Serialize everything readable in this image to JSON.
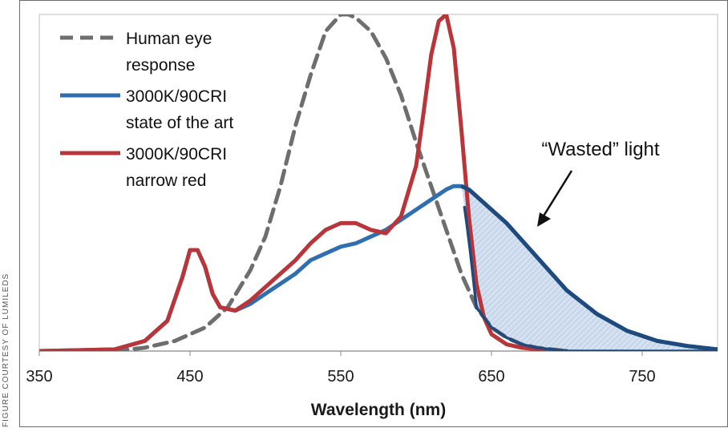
{
  "credit": "FIGURE COURTESY OF LUMILEDS",
  "chart_data": {
    "type": "line",
    "title": "",
    "xlabel": "Wavelength (nm)",
    "ylabel": "",
    "xlim": [
      350,
      800
    ],
    "ylim": [
      0,
      1.0
    ],
    "x_ticks": [
      350,
      450,
      550,
      650,
      750
    ],
    "grid": false,
    "legend_position": "top-left",
    "annotation": "“Wasted” light",
    "colors": {
      "human_eye": "#6e6e6e",
      "state_of_art": "#2f6fb0",
      "narrow_red": "#b8353a",
      "wasted_fill": "#c9d8ec",
      "wasted_edge": "#1f4a7d"
    },
    "series": [
      {
        "key": "human_eye",
        "name": "Human eye response",
        "legend_lines": [
          "Human eye",
          "response"
        ],
        "style": "dashed",
        "x": [
          400,
          420,
          440,
          460,
          475,
          490,
          500,
          510,
          520,
          530,
          540,
          550,
          555,
          560,
          570,
          580,
          590,
          600,
          610,
          620,
          630,
          640,
          650,
          660,
          670,
          680,
          700
        ],
        "y": [
          0.0,
          0.01,
          0.03,
          0.07,
          0.13,
          0.24,
          0.34,
          0.49,
          0.67,
          0.82,
          0.95,
          1.0,
          1.0,
          0.99,
          0.95,
          0.87,
          0.76,
          0.62,
          0.49,
          0.36,
          0.23,
          0.13,
          0.07,
          0.04,
          0.02,
          0.01,
          0.0
        ]
      },
      {
        "key": "state_of_art",
        "name": "3000K/90CRI state of the art",
        "legend_lines": [
          "3000K/90CRI",
          "state of the art"
        ],
        "style": "solid",
        "x": [
          350,
          400,
          420,
          435,
          445,
          450,
          455,
          460,
          465,
          470,
          480,
          490,
          500,
          510,
          520,
          530,
          540,
          550,
          560,
          570,
          580,
          590,
          600,
          610,
          620,
          625,
          630,
          635,
          640,
          650,
          660,
          670,
          680,
          690,
          700,
          720,
          740,
          760,
          780,
          800
        ],
        "y": [
          0.0,
          0.005,
          0.03,
          0.09,
          0.22,
          0.3,
          0.3,
          0.25,
          0.17,
          0.13,
          0.12,
          0.14,
          0.17,
          0.2,
          0.23,
          0.27,
          0.29,
          0.31,
          0.32,
          0.34,
          0.36,
          0.39,
          0.42,
          0.45,
          0.48,
          0.49,
          0.49,
          0.48,
          0.46,
          0.42,
          0.38,
          0.33,
          0.28,
          0.23,
          0.18,
          0.11,
          0.06,
          0.03,
          0.015,
          0.005
        ]
      },
      {
        "key": "narrow_red",
        "name": "3000K/90CRI narrow red",
        "legend_lines": [
          "3000K/90CRI",
          "narrow red"
        ],
        "style": "solid",
        "x": [
          350,
          400,
          420,
          435,
          445,
          450,
          455,
          460,
          465,
          470,
          480,
          490,
          500,
          510,
          520,
          530,
          540,
          550,
          560,
          570,
          580,
          590,
          600,
          605,
          610,
          615,
          620,
          625,
          630,
          635,
          640,
          645,
          650,
          660,
          670,
          680,
          700
        ],
        "y": [
          0.0,
          0.005,
          0.03,
          0.09,
          0.22,
          0.3,
          0.3,
          0.25,
          0.17,
          0.13,
          0.12,
          0.15,
          0.19,
          0.23,
          0.27,
          0.32,
          0.36,
          0.38,
          0.38,
          0.36,
          0.35,
          0.4,
          0.55,
          0.71,
          0.88,
          0.98,
          1.0,
          0.9,
          0.66,
          0.4,
          0.2,
          0.1,
          0.05,
          0.02,
          0.01,
          0.005,
          0.0
        ]
      }
    ]
  }
}
